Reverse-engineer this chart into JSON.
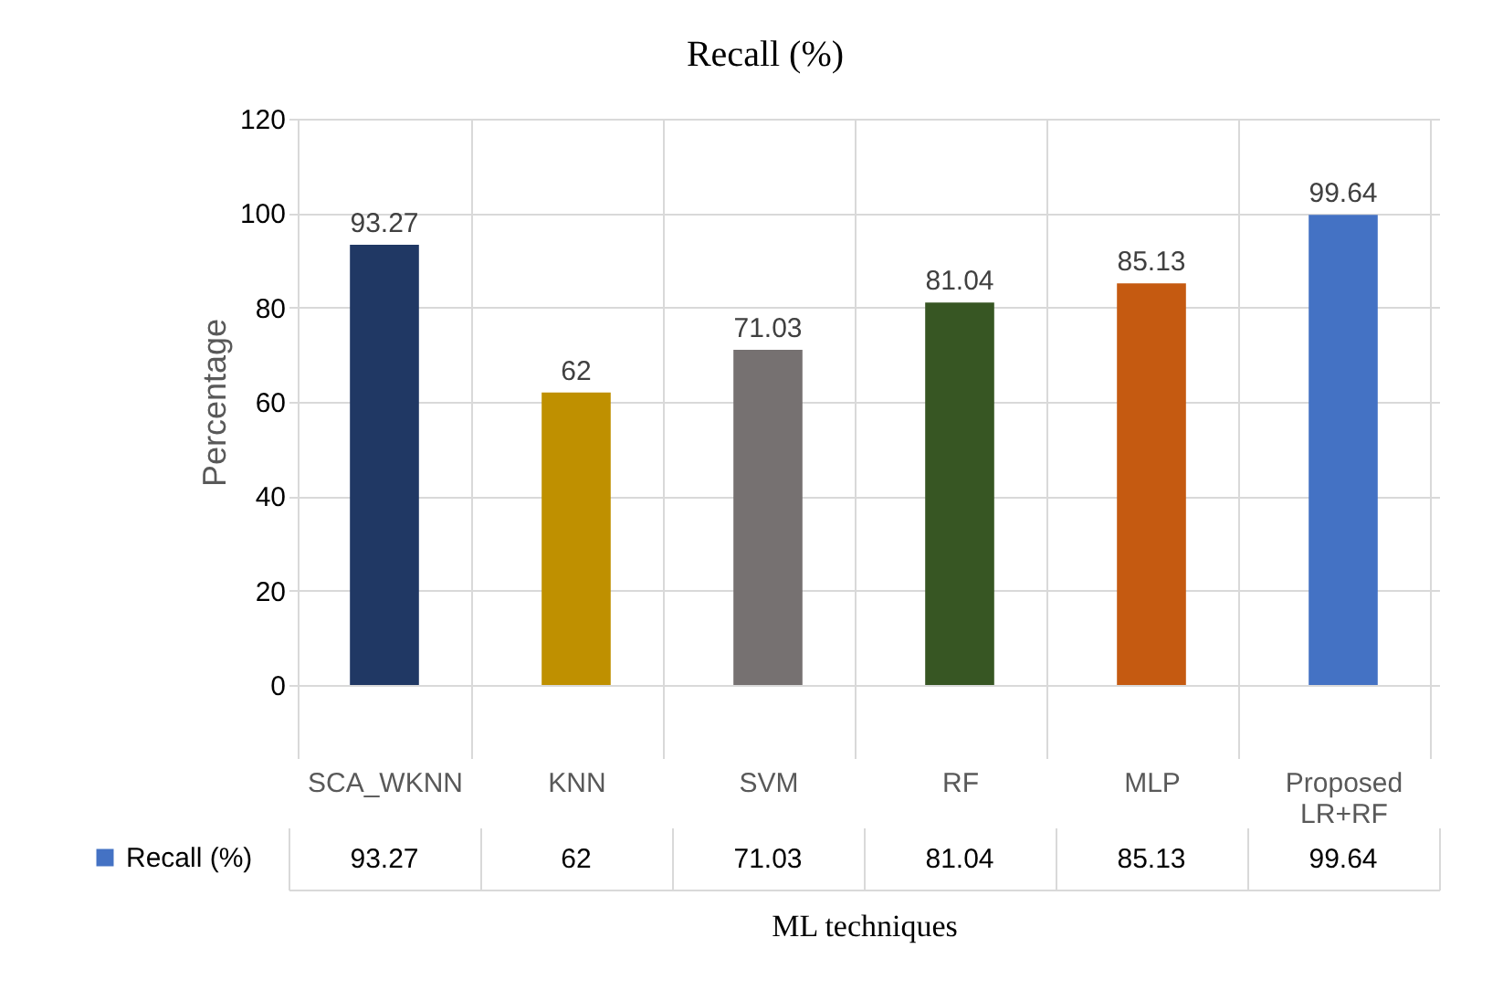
{
  "chart_data": {
    "type": "bar",
    "title": "Recall (%)",
    "xlabel": "ML techniques",
    "ylabel": "Percentage",
    "categories": [
      "SCA_WKNN",
      "KNN",
      "SVM",
      "RF",
      "MLP",
      "Proposed LR+RF"
    ],
    "series": [
      {
        "name": "Recall (%)",
        "color": "#4472c4",
        "colors": [
          "#203864",
          "#bf9000",
          "#767171",
          "#375623",
          "#c55a11",
          "#4472c4"
        ],
        "values": [
          93.27,
          62,
          71.03,
          81.04,
          85.13,
          99.64
        ]
      }
    ],
    "annotations": [
      "93.27",
      "62",
      "71.03",
      "81.04",
      "85.13",
      "99.64"
    ],
    "ylim": [
      0,
      120
    ],
    "yticks": [
      0,
      20,
      40,
      60,
      80,
      100,
      120
    ],
    "grid": "y",
    "data_labels": true,
    "legend": "bottom left"
  }
}
